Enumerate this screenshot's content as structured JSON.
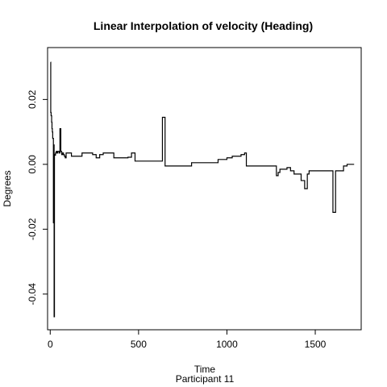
{
  "chart_data": {
    "type": "line",
    "title": "Linear Interpolation of velocity (Heading)",
    "xlabel": "Time",
    "subtitle": "Participant  11",
    "ylabel": "Degrees",
    "xlim": [
      -15,
      1760
    ],
    "ylim": [
      -0.051,
      0.036
    ],
    "x_ticks": [
      0,
      500,
      1000,
      1500
    ],
    "x_tick_labels": [
      "0",
      "500",
      "1000",
      "1500"
    ],
    "y_ticks": [
      -0.04,
      -0.02,
      0.0,
      0.02
    ],
    "y_tick_labels": [
      "-0.04",
      "-0.02",
      "0.00",
      "0.02"
    ],
    "grid": false,
    "legend": "none",
    "line_style": "step",
    "color": "#000000",
    "series": [
      {
        "x": [
          2,
          3,
          5,
          8,
          10,
          12,
          14,
          18,
          20,
          22,
          24,
          26,
          28,
          30,
          32,
          34,
          38,
          42,
          50,
          55,
          60,
          65,
          70,
          75,
          80,
          85,
          90,
          95,
          100,
          120,
          140,
          160,
          180,
          200,
          220,
          240,
          260,
          280,
          300,
          320,
          340,
          360,
          380,
          400,
          420,
          440,
          460,
          480,
          490,
          500,
          520,
          560,
          600,
          635,
          640,
          650,
          660,
          700,
          750,
          800,
          850,
          900,
          950,
          980,
          1000,
          1030,
          1060,
          1080,
          1100,
          1110,
          1120,
          1150,
          1200,
          1250,
          1280,
          1290,
          1300,
          1320,
          1340,
          1360,
          1380,
          1400,
          1420,
          1440,
          1455,
          1465,
          1470,
          1500,
          1550,
          1600,
          1605,
          1615,
          1620,
          1640,
          1660,
          1680,
          1700,
          1720
        ],
        "values": [
          0.0315,
          0.016,
          0.015,
          0.013,
          0.011,
          0.01,
          0.008,
          -0.018,
          0.006,
          -0.047,
          0.003,
          0.0028,
          0.0028,
          0.0035,
          0.0035,
          0.004,
          0.0035,
          0.004,
          0.0035,
          0.011,
          0.004,
          0.003,
          0.0035,
          0.003,
          0.0025,
          0.002,
          0.0035,
          0.0035,
          0.0035,
          0.0025,
          0.0025,
          0.0025,
          0.0035,
          0.0035,
          0.0035,
          0.003,
          0.002,
          0.003,
          0.0035,
          0.0035,
          0.0035,
          0.002,
          0.002,
          0.002,
          0.002,
          0.0022,
          0.0035,
          0.001,
          0.001,
          0.001,
          0.001,
          0.001,
          0.001,
          0.0145,
          0.0145,
          -0.0005,
          -0.0005,
          -0.0005,
          -0.0005,
          0.0005,
          0.0005,
          0.0005,
          0.0015,
          0.0015,
          0.002,
          0.0025,
          0.0025,
          0.003,
          0.0035,
          -0.0005,
          -0.0005,
          -0.0005,
          -0.0005,
          -0.0005,
          -0.0035,
          -0.0025,
          -0.0015,
          -0.0015,
          -0.001,
          -0.002,
          -0.003,
          -0.003,
          -0.005,
          -0.0075,
          -0.003,
          -0.002,
          -0.002,
          -0.002,
          -0.002,
          -0.0148,
          -0.0148,
          -0.002,
          -0.002,
          -0.002,
          -0.0005,
          0.0,
          0.0,
          0.0
        ]
      }
    ]
  }
}
